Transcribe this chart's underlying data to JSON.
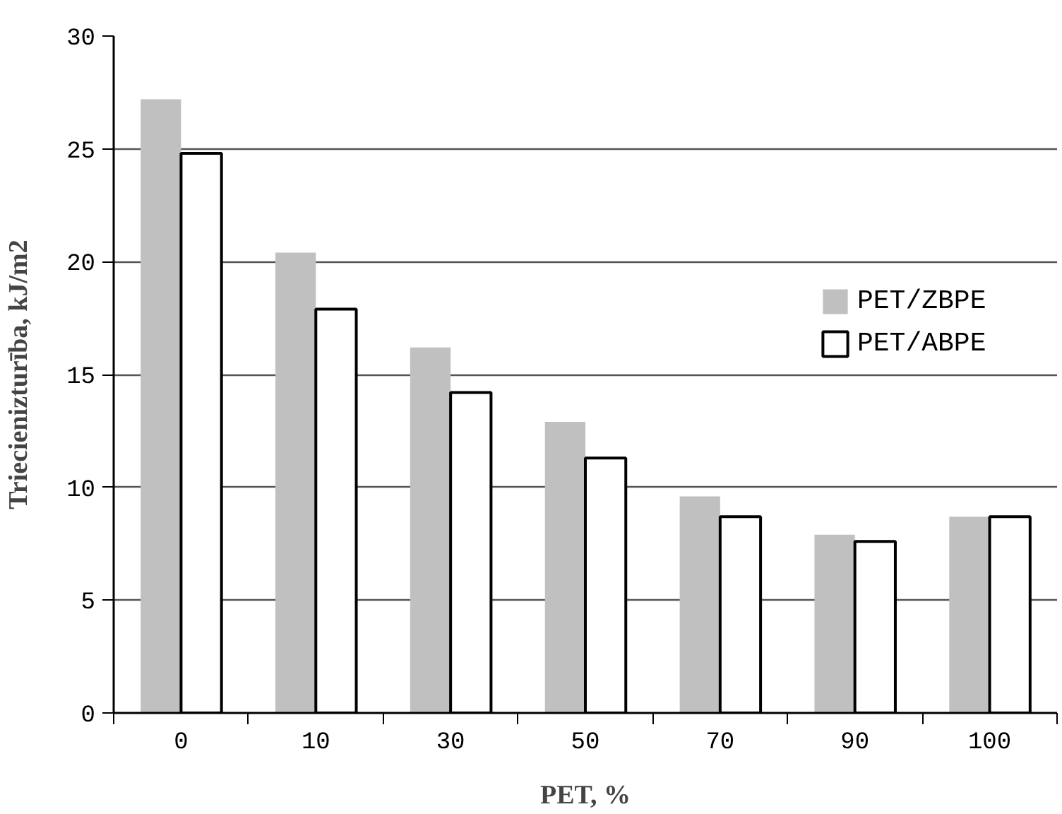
{
  "chart_data": {
    "type": "bar",
    "xlabel": "PET, %",
    "ylabel": "Triecienizturība, kJ/m2",
    "categories": [
      "0",
      "10",
      "30",
      "50",
      "70",
      "90",
      "100"
    ],
    "series": [
      {
        "name": "PET/ZBPE",
        "color": "#c0c0c0",
        "values": [
          27.2,
          20.4,
          16.2,
          12.9,
          9.6,
          7.9,
          8.7
        ]
      },
      {
        "name": "PET/ABPE",
        "color": "#ffffff",
        "values": [
          24.8,
          17.9,
          14.2,
          11.3,
          8.7,
          7.6,
          8.7
        ]
      }
    ],
    "ylim": [
      0,
      30
    ],
    "yticks": [
      0,
      5,
      10,
      15,
      20,
      25,
      30
    ],
    "grid": "y",
    "legend": "right"
  }
}
